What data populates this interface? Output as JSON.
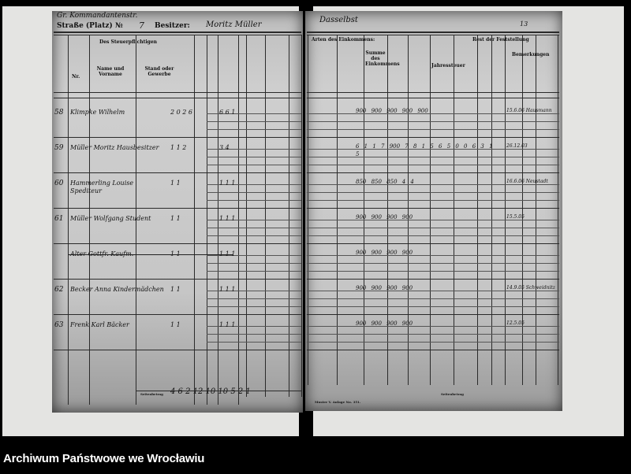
{
  "left_page": {
    "street_handwritten": "Gr. Kommandantenstr.",
    "street_label": "Straße (Platz) №",
    "house_number": "7",
    "owner_label": "Besitzer:",
    "owner_handwritten": "Moritz Müller",
    "headers": {
      "taxpayer": "Des Steuerpflichtigen",
      "name": "Name und Vorname",
      "occupation": "Stand oder Gewerbe",
      "row_no": "Nr."
    },
    "rows": [
      {
        "no": "58",
        "name": "Klimpke Wilhelm",
        "counts": "2 0 2 6",
        "more": "6 6 1"
      },
      {
        "no": "59",
        "name": "Müller Moritz Hausbesitzer",
        "counts": "1 1 2",
        "more": "3 4"
      },
      {
        "no": "60",
        "name": "Hammerling Louise Spediteur",
        "counts": "1 1",
        "more": "1 1 1"
      },
      {
        "no": "61",
        "name": "Müller Wolfgang Student",
        "counts": "1 1",
        "more": "1 1 1"
      },
      {
        "no": "",
        "name": "Alter Gottfr. Kaufm.",
        "counts": "1 1",
        "more": "1 1 1"
      },
      {
        "no": "62",
        "name": "Becker Anna Kindermädchen",
        "counts": "1 1",
        "more": "1 1 1"
      },
      {
        "no": "63",
        "name": "Frenk Karl Bäcker",
        "counts": "1 1",
        "more": "1 1 1"
      }
    ],
    "total_label": "Seitenbetrag",
    "totals": "4 6 2 12   10 10 5 2 1"
  },
  "right_page": {
    "handwritten_heading": "Dasselbst",
    "page_number": "13",
    "headers": {
      "income_types": "Arten des Einkommens:",
      "sum": "Summe des Einkommens",
      "tax": "Jahressteuer",
      "assessment": "Rest der Feststellung",
      "remarks": "Bemerkungen"
    },
    "amounts": [
      "900  900  900  900  900",
      "6 1 1 7   900  7 8 1 5  6 5 0 0  6 3 1 5",
      "850  850  850  4 4",
      "900  900  900  900",
      "900  900  900  900",
      "900  900  900  900",
      "900  900  900  900"
    ],
    "remarks": [
      "15.6.06 Hausmann",
      "26.12.03",
      "16.6.06 Neustadt",
      "15.5.05",
      "",
      "14.9.05 Schweidnitz",
      "12.5.05"
    ],
    "total_label": "Seitenbetrag",
    "form_note": "Muster V. Anlage No. 351."
  },
  "footer": {
    "archive_name": "Archiwum Państwowe we Wrocławiu"
  }
}
